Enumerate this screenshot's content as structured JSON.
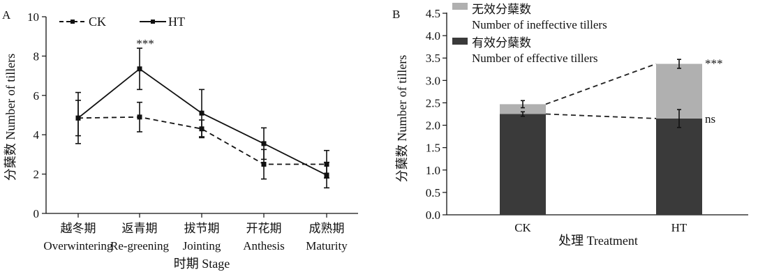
{
  "chart_data": [
    {
      "panel_label": "A",
      "type": "line",
      "categories_cn": [
        "越冬期",
        "返青期",
        "拔节期",
        "开花期",
        "成熟期"
      ],
      "categories_en": [
        "Overwintering",
        "Re-greening",
        "Jointing",
        "Anthesis",
        "Maturity"
      ],
      "xlabel": "时期 Stage",
      "ylabel": "分蘖数 Number of tillers",
      "ylim": [
        0,
        10
      ],
      "yticks": [
        "0",
        "2",
        "4",
        "6",
        "8",
        "10"
      ],
      "legend_placement": "top-left",
      "series": [
        {
          "name": "CK",
          "style": "dashed",
          "values": [
            4.85,
            4.9,
            4.3,
            2.5,
            2.5
          ],
          "errors": [
            1.3,
            0.75,
            0.45,
            0.75,
            0.7
          ]
        },
        {
          "name": "HT",
          "style": "solid",
          "values": [
            4.85,
            7.35,
            5.1,
            3.55,
            1.95
          ],
          "errors": [
            0.9,
            1.05,
            1.2,
            0.8,
            0.65
          ]
        }
      ],
      "annotations": [
        {
          "category": "Re-greening",
          "text": "***"
        }
      ]
    },
    {
      "panel_label": "B",
      "type": "bar",
      "stacked": true,
      "categories": [
        "CK",
        "HT"
      ],
      "xlabel": "处理 Treatment",
      "ylabel": "分蘖数 Number of tillers",
      "ylim": [
        0,
        4.5
      ],
      "yticks": [
        "0.0",
        "0.5",
        "1.0",
        "1.5",
        "2.0",
        "2.5",
        "3.0",
        "3.5",
        "4.0",
        "4.5"
      ],
      "legend_placement": "top-left",
      "series": [
        {
          "name_cn": "有效分蘖数",
          "name_en": "Number of effective tillers",
          "color": "#3a3a3a",
          "values": [
            2.25,
            2.15
          ],
          "errors": [
            0.05,
            0.2
          ]
        },
        {
          "name_cn": "无效分蘖数",
          "name_en": "Number of ineffective tillers",
          "color": "#b0b0b0",
          "values": [
            0.22,
            1.22
          ],
          "errors": [
            0.08,
            0.1
          ]
        }
      ],
      "annotations": [
        {
          "category": "HT",
          "level": "top",
          "text": "***"
        },
        {
          "category": "HT",
          "level": "effective",
          "text": "ns"
        }
      ]
    }
  ]
}
